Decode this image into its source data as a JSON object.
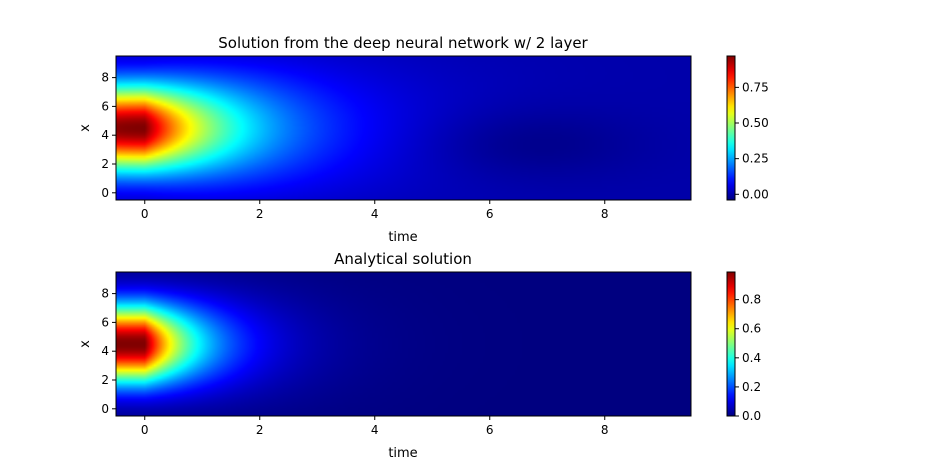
{
  "chart_data": [
    {
      "type": "heatmap",
      "title": "Solution from the deep neural network w/ 2 layer",
      "xlabel": "time",
      "ylabel": "x",
      "xlim": [
        -0.5,
        9.5
      ],
      "ylim": [
        -0.5,
        9.5
      ],
      "xticks": [
        0,
        2,
        4,
        6,
        8
      ],
      "yticks": [
        0,
        2,
        4,
        6,
        8
      ],
      "colormap": "jet",
      "colorbar": {
        "min": -0.04,
        "max": 0.97,
        "ticks": [
          0.0,
          0.25,
          0.5,
          0.75
        ],
        "tick_labels": [
          "0.00",
          "0.25",
          "0.50",
          "0.75"
        ]
      },
      "peak": {
        "time": 0,
        "x": 4.5,
        "value": 0.97
      }
    },
    {
      "type": "heatmap",
      "title": "Analytical solution",
      "xlabel": "time",
      "ylabel": "x",
      "xlim": [
        -0.5,
        9.5
      ],
      "ylim": [
        -0.5,
        9.5
      ],
      "xticks": [
        0,
        2,
        4,
        6,
        8
      ],
      "yticks": [
        0,
        2,
        4,
        6,
        8
      ],
      "colormap": "jet",
      "colorbar": {
        "min": 0.0,
        "max": 0.99,
        "ticks": [
          0.0,
          0.2,
          0.4,
          0.6,
          0.8
        ],
        "tick_labels": [
          "0.0",
          "0.2",
          "0.4",
          "0.6",
          "0.8"
        ]
      },
      "peak": {
        "time": 0,
        "x": 4.5,
        "value": 0.99
      }
    }
  ]
}
